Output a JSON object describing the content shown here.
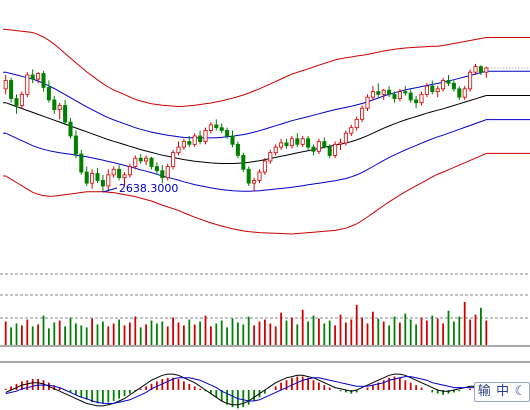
{
  "chart_data": [
    {
      "type": "candlestick",
      "panel": "price",
      "annotation_label": "2638.3000",
      "annotation_value": 2638.3,
      "colors": {
        "up": "#d40000",
        "down": "#008000",
        "ma": "#000000",
        "inner_band": "#0000cc",
        "outer_band": "#cc0000",
        "annotation": "#0000cc"
      },
      "ohlc": [
        [
          3010,
          3060,
          2990,
          3040
        ],
        [
          3040,
          3050,
          2960,
          2975
        ],
        [
          2975,
          2990,
          2920,
          2950
        ],
        [
          2950,
          3000,
          2940,
          2990
        ],
        [
          2990,
          3070,
          2980,
          3060
        ],
        [
          3060,
          3080,
          3030,
          3045
        ],
        [
          3045,
          3070,
          3030,
          3065
        ],
        [
          3065,
          3075,
          3000,
          3015
        ],
        [
          3015,
          3040,
          2960,
          2970
        ],
        [
          2970,
          2985,
          2920,
          2935
        ],
        [
          2935,
          2960,
          2900,
          2950
        ],
        [
          2950,
          2970,
          2880,
          2890
        ],
        [
          2890,
          2905,
          2830,
          2840
        ],
        [
          2840,
          2860,
          2760,
          2775
        ],
        [
          2775,
          2790,
          2700,
          2710
        ],
        [
          2710,
          2730,
          2660,
          2670
        ],
        [
          2670,
          2720,
          2650,
          2705
        ],
        [
          2705,
          2725,
          2670,
          2680
        ],
        [
          2680,
          2700,
          2640,
          2660
        ],
        [
          2660,
          2720,
          2640,
          2700
        ],
        [
          2700,
          2730,
          2690,
          2720
        ],
        [
          2720,
          2735,
          2680,
          2690
        ],
        [
          2690,
          2710,
          2660,
          2700
        ],
        [
          2700,
          2740,
          2690,
          2730
        ],
        [
          2730,
          2770,
          2720,
          2760
        ],
        [
          2760,
          2775,
          2740,
          2750
        ],
        [
          2750,
          2770,
          2735,
          2760
        ],
        [
          2760,
          2765,
          2720,
          2730
        ],
        [
          2730,
          2745,
          2700,
          2715
        ],
        [
          2715,
          2735,
          2670,
          2690
        ],
        [
          2690,
          2740,
          2680,
          2730
        ],
        [
          2730,
          2790,
          2720,
          2780
        ],
        [
          2780,
          2820,
          2770,
          2800
        ],
        [
          2800,
          2830,
          2790,
          2820
        ],
        [
          2820,
          2840,
          2800,
          2810
        ],
        [
          2810,
          2850,
          2800,
          2840
        ],
        [
          2840,
          2860,
          2810,
          2820
        ],
        [
          2820,
          2870,
          2810,
          2860
        ],
        [
          2860,
          2890,
          2850,
          2880
        ],
        [
          2880,
          2900,
          2860,
          2870
        ],
        [
          2870,
          2885,
          2850,
          2860
        ],
        [
          2860,
          2870,
          2830,
          2840
        ],
        [
          2840,
          2860,
          2800,
          2810
        ],
        [
          2810,
          2820,
          2760,
          2770
        ],
        [
          2770,
          2780,
          2710,
          2720
        ],
        [
          2720,
          2730,
          2660,
          2670
        ],
        [
          2670,
          2690,
          2640,
          2680
        ],
        [
          2680,
          2720,
          2670,
          2710
        ],
        [
          2710,
          2760,
          2700,
          2750
        ],
        [
          2750,
          2790,
          2740,
          2780
        ],
        [
          2780,
          2810,
          2770,
          2800
        ],
        [
          2800,
          2830,
          2790,
          2815
        ],
        [
          2815,
          2830,
          2795,
          2805
        ],
        [
          2805,
          2840,
          2795,
          2830
        ],
        [
          2830,
          2850,
          2800,
          2810
        ],
        [
          2810,
          2840,
          2800,
          2830
        ],
        [
          2830,
          2840,
          2790,
          2800
        ],
        [
          2800,
          2810,
          2770,
          2785
        ],
        [
          2785,
          2830,
          2775,
          2820
        ],
        [
          2820,
          2835,
          2795,
          2800
        ],
        [
          2800,
          2810,
          2760,
          2770
        ],
        [
          2770,
          2820,
          2760,
          2810
        ],
        [
          2810,
          2830,
          2790,
          2815
        ],
        [
          2815,
          2860,
          2805,
          2850
        ],
        [
          2850,
          2880,
          2840,
          2870
        ],
        [
          2870,
          2910,
          2860,
          2900
        ],
        [
          2900,
          2950,
          2890,
          2940
        ],
        [
          2940,
          2990,
          2930,
          2980
        ],
        [
          2980,
          3020,
          2970,
          3000
        ],
        [
          3000,
          3030,
          2980,
          2990
        ],
        [
          2990,
          3010,
          2970,
          3005
        ],
        [
          3005,
          3020,
          2980,
          2990
        ],
        [
          2990,
          3000,
          2960,
          2975
        ],
        [
          2975,
          3010,
          2965,
          3000
        ],
        [
          3000,
          3020,
          2985,
          2995
        ],
        [
          2995,
          3010,
          2960,
          2970
        ],
        [
          2970,
          2985,
          2940,
          2960
        ],
        [
          2960,
          3000,
          2950,
          2990
        ],
        [
          2990,
          3030,
          2980,
          3020
        ],
        [
          3020,
          3040,
          2990,
          3000
        ],
        [
          3000,
          3020,
          2980,
          3010
        ],
        [
          3010,
          3050,
          3000,
          3040
        ],
        [
          3040,
          3060,
          3020,
          3030
        ],
        [
          3030,
          3040,
          3000,
          3010
        ],
        [
          3010,
          3020,
          2970,
          2980
        ],
        [
          2980,
          3020,
          2970,
          3010
        ],
        [
          3010,
          3080,
          3000,
          3070
        ],
        [
          3070,
          3100,
          3060,
          3090
        ],
        [
          3090,
          3095,
          3060,
          3070
        ],
        [
          3070,
          3090,
          3050,
          3085
        ]
      ],
      "ma": [
        2960,
        2953,
        2946,
        2939,
        2932,
        2925,
        2918,
        2911,
        2904,
        2897,
        2890,
        2883,
        2876,
        2869,
        2862,
        2855,
        2848,
        2841,
        2834,
        2827,
        2821,
        2815,
        2809,
        2803,
        2797,
        2791,
        2786,
        2781,
        2776,
        2771,
        2767,
        2763,
        2759,
        2755,
        2752,
        2749,
        2747,
        2745,
        2743,
        2742,
        2741,
        2741,
        2741,
        2742,
        2743,
        2745,
        2748,
        2751,
        2755,
        2759,
        2763,
        2767,
        2771,
        2775,
        2779,
        2783,
        2787,
        2791,
        2795,
        2799,
        2803,
        2807,
        2811,
        2815,
        2820,
        2826,
        2833,
        2841,
        2850,
        2859,
        2868,
        2876,
        2884,
        2891,
        2898,
        2904,
        2910,
        2916,
        2922,
        2928,
        2933,
        2938,
        2944,
        2950,
        2956,
        2962,
        2968,
        2974,
        2980,
        2986
      ],
      "inner_band_offset": [
        110,
        112,
        114,
        116,
        118,
        120,
        120,
        119,
        117,
        114,
        110,
        106,
        102,
        98,
        94,
        90,
        87,
        84,
        81,
        79,
        77,
        76,
        75,
        74,
        73,
        73,
        73,
        73,
        74,
        75,
        76,
        77,
        78,
        80,
        82,
        84,
        86,
        88,
        90,
        92,
        94,
        96,
        98,
        100,
        102,
        104,
        106,
        108,
        110,
        112,
        114,
        116,
        118,
        120,
        121,
        122,
        123,
        124,
        125,
        126,
        127,
        128,
        128,
        128,
        127,
        126,
        124,
        122,
        120,
        118,
        116,
        114,
        112,
        110,
        108,
        106,
        104,
        102,
        100,
        98,
        96,
        95,
        94,
        93,
        92,
        91,
        90,
        89,
        88,
        87
      ],
      "outer_band_factor": 2.4,
      "ylim": [
        2350,
        3330
      ]
    },
    {
      "type": "bar",
      "panel": "volume",
      "colors": {
        "up": "#d40000",
        "down": "#008000",
        "guide": "#888888"
      },
      "values": [
        24,
        18,
        22,
        20,
        26,
        19,
        21,
        30,
        17,
        23,
        25,
        19,
        28,
        22,
        20,
        18,
        27,
        21,
        24,
        19,
        22,
        26,
        20,
        23,
        29,
        18,
        21,
        25,
        22,
        24,
        19,
        28,
        23,
        20,
        26,
        21,
        24,
        30,
        19,
        22,
        25,
        18,
        27,
        23,
        21,
        29,
        20,
        24,
        26,
        22,
        19,
        33,
        25,
        28,
        21,
        36,
        24,
        30,
        27,
        22,
        25,
        20,
        31,
        23,
        26,
        41,
        28,
        22,
        34,
        27,
        24,
        20,
        29,
        23,
        32,
        26,
        21,
        28,
        25,
        30,
        27,
        22,
        35,
        24,
        29,
        44,
        26,
        31,
        38,
        25
      ],
      "ylim": [
        0,
        48
      ]
    },
    {
      "type": "bar+line",
      "panel": "macd",
      "colors": {
        "pos": "#d40000",
        "neg": "#008000",
        "dif": "#000000",
        "dea": "#0000cc"
      },
      "histogram": [
        1,
        3,
        5,
        7,
        8,
        9,
        9,
        8,
        6,
        4,
        2,
        0,
        -2,
        -4,
        -6,
        -8,
        -10,
        -11,
        -11,
        -10,
        -9,
        -7,
        -5,
        -3,
        -1,
        1,
        3,
        5,
        7,
        9,
        10,
        10,
        9,
        7,
        5,
        3,
        1,
        -1,
        -3,
        -6,
        -9,
        -12,
        -14,
        -15,
        -14,
        -12,
        -9,
        -6,
        -3,
        0,
        3,
        6,
        8,
        10,
        11,
        11,
        10,
        8,
        6,
        4,
        2,
        0,
        -1,
        -2,
        -3,
        -2,
        0,
        2,
        4,
        6,
        8,
        10,
        11,
        10,
        8,
        6,
        4,
        2,
        0,
        -2,
        -3,
        -4,
        -3,
        -2,
        -1,
        0,
        1,
        2,
        3,
        4
      ],
      "dif": [
        -2,
        0,
        2,
        4,
        5,
        6,
        6,
        5,
        3,
        1,
        -1,
        -3,
        -5,
        -7,
        -9,
        -11,
        -12,
        -13,
        -13,
        -12,
        -11,
        -9,
        -7,
        -4,
        -1,
        2,
        5,
        8,
        10,
        12,
        13,
        13,
        12,
        10,
        8,
        6,
        3,
        0,
        -3,
        -6,
        -9,
        -11,
        -12,
        -12,
        -11,
        -9,
        -6,
        -3,
        0,
        3,
        6,
        8,
        10,
        11,
        12,
        12,
        11,
        10,
        8,
        6,
        4,
        2,
        1,
        0,
        -1,
        0,
        2,
        4,
        6,
        8,
        10,
        12,
        13,
        13,
        12,
        10,
        8,
        6,
        4,
        2,
        0,
        -1,
        -1,
        0,
        1,
        2,
        3,
        3,
        4,
        4
      ],
      "dea": [
        -3,
        -2,
        -1,
        1,
        2,
        3,
        4,
        4,
        4,
        3,
        2,
        0,
        -2,
        -4,
        -6,
        -7,
        -9,
        -10,
        -11,
        -11,
        -11,
        -10,
        -9,
        -8,
        -6,
        -4,
        -2,
        1,
        3,
        5,
        7,
        9,
        10,
        10,
        10,
        9,
        8,
        6,
        4,
        2,
        -1,
        -3,
        -5,
        -7,
        -8,
        -9,
        -9,
        -8,
        -6,
        -4,
        -2,
        0,
        2,
        4,
        6,
        8,
        9,
        10,
        10,
        9,
        8,
        7,
        6,
        5,
        4,
        3,
        3,
        3,
        4,
        5,
        6,
        8,
        9,
        10,
        11,
        11,
        10,
        9,
        8,
        6,
        5,
        4,
        3,
        2,
        2,
        2,
        2,
        2,
        3,
        3
      ],
      "ylim": [
        -18,
        18
      ]
    }
  ],
  "ime_toolbar": {
    "mode_icon": "输",
    "lang": "中",
    "moon_icon": "☾"
  }
}
